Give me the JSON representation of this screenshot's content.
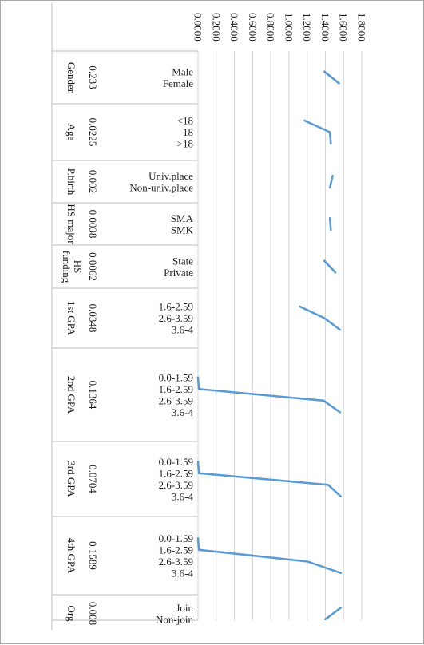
{
  "chart_data": {
    "type": "line",
    "orientation": "rotated 90 degrees clockwise",
    "grid": true,
    "x_ticks": [
      "0.0000",
      "0.2000",
      "0.4000",
      "0.6000",
      "0.8000",
      "1.0000",
      "1.2000",
      "1.4000",
      "1.6000",
      "1.8000"
    ],
    "xlim": [
      0,
      1.8
    ],
    "line_color": "#5b9bd5",
    "groups": [
      {
        "name": "Gender",
        "weight": "0.233",
        "categories": [
          "Male",
          "Female"
        ],
        "values": [
          1.39,
          1.55
        ]
      },
      {
        "name": "Age",
        "weight": "0.0225",
        "categories": [
          "<18",
          "18",
          ">18"
        ],
        "values": [
          1.17,
          1.45,
          1.46
        ]
      },
      {
        "name": "P.birth",
        "weight": "0.002",
        "categories": [
          "Univ.place",
          "Non-univ.place"
        ],
        "values": [
          1.48,
          1.45
        ]
      },
      {
        "name": "HS major",
        "weight": "0.0038",
        "categories": [
          "SMA",
          "SMK"
        ],
        "values": [
          1.45,
          1.46
        ]
      },
      {
        "name": "HS funding",
        "weight": "0.0062",
        "categories": [
          "State",
          "Private"
        ],
        "values": [
          1.39,
          1.51
        ]
      },
      {
        "name": "1st GPA",
        "weight": "0.0348",
        "categories": [
          "1.6-2.59",
          "2.6-3.59",
          "3.6-4"
        ],
        "values": [
          1.12,
          1.39,
          1.56
        ]
      },
      {
        "name": "2nd GPA",
        "weight": "0.1364",
        "categories": [
          "0.0-1.59",
          "1.6-2.59",
          "2.6-3.59",
          "3.6-4"
        ],
        "values": [
          0.0,
          0.01,
          1.38,
          1.56
        ]
      },
      {
        "name": "3rd GPA",
        "weight": "0.0704",
        "categories": [
          "0.0-1.59",
          "1.6-2.59",
          "2.6-3.59",
          "3.6-4"
        ],
        "values": [
          0.0,
          0.01,
          1.43,
          1.57
        ]
      },
      {
        "name": "4th GPA",
        "weight": "0.1589",
        "categories": [
          "0.0-1.59",
          "1.6-2.59",
          "2.6-3.59",
          "3.6-4"
        ],
        "values": [
          0.0,
          0.01,
          1.2,
          1.57
        ]
      },
      {
        "name": "Org",
        "weight": "0.008",
        "categories": [
          "Join",
          "Non-join"
        ],
        "values": [
          1.57,
          1.4
        ]
      }
    ]
  }
}
